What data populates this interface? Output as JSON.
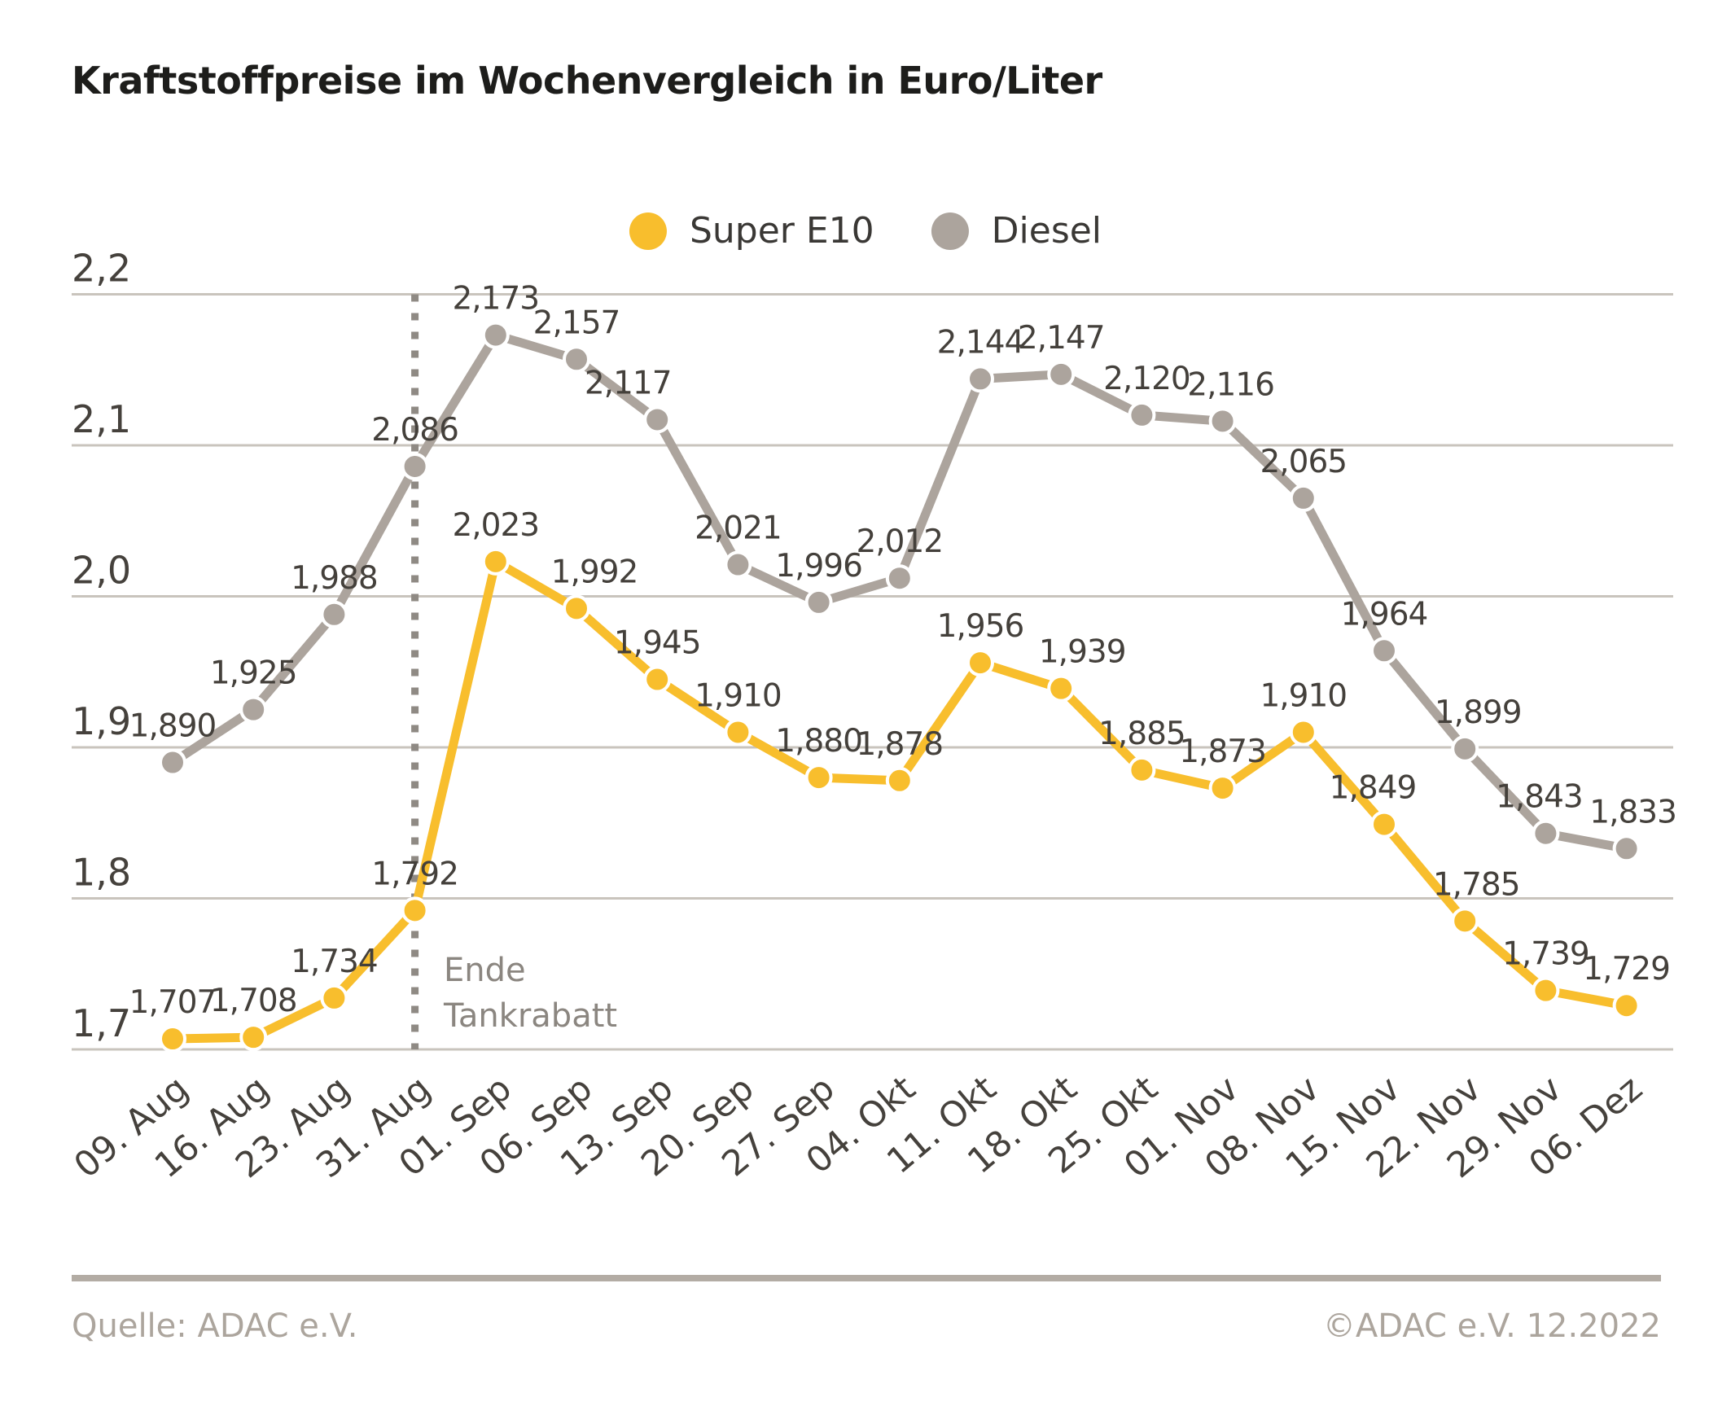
{
  "title": "Kraftstoffpreise im Wochenvergleich in Euro/Liter",
  "legend": {
    "items": [
      {
        "label": "Super E10",
        "color": "#F8BE2D"
      },
      {
        "label": "Diesel",
        "color": "#ACA49D"
      }
    ]
  },
  "annotation": {
    "line1": "Ende",
    "line2": "Tankrabatt",
    "at_category": "31. Aug"
  },
  "footer": {
    "source": "Quelle: ADAC e.V.",
    "copyright": "©ADAC e.V.  12.2022"
  },
  "colors": {
    "super_e10": "#F8BE2D",
    "diesel": "#ACA49D",
    "grid": "#C9C4BD",
    "axis_text": "#45413c",
    "value_text": "#44403b",
    "divider": "#8f8a84",
    "annotation_text": "#8b8680",
    "footer_text": "#aca59d",
    "title_text": "#1d1d1b"
  },
  "chart_data": {
    "type": "line",
    "title": "Kraftstoffpreise im Wochenvergleich in Euro/Liter",
    "xlabel": "",
    "ylabel": "Euro/Liter",
    "grid": "horizontal-only",
    "legend_position": "top-center",
    "ylim": [
      1.7,
      2.2
    ],
    "yticks": [
      {
        "value": 2.2,
        "label": "2,2"
      },
      {
        "value": 2.1,
        "label": "2,1"
      },
      {
        "value": 2.0,
        "label": "2,0"
      },
      {
        "value": 1.9,
        "label": "1,9"
      },
      {
        "value": 1.8,
        "label": "1,8"
      },
      {
        "value": 1.7,
        "label": "1,7"
      }
    ],
    "categories": [
      "09. Aug",
      "16. Aug",
      "23. Aug",
      "31. Aug",
      "01. Sep",
      "06. Sep",
      "13. Sep",
      "20. Sep",
      "27. Sep",
      "04. Okt",
      "11. Okt",
      "18. Okt",
      "25. Okt",
      "01. Nov",
      "08. Nov",
      "15. Nov",
      "22. Nov",
      "29. Nov",
      "06. Dez"
    ],
    "series": [
      {
        "name": "Super E10",
        "color": "#F8BE2D",
        "values": [
          1.707,
          1.708,
          1.734,
          1.792,
          2.023,
          1.992,
          1.945,
          1.91,
          1.88,
          1.878,
          1.956,
          1.939,
          1.885,
          1.873,
          1.91,
          1.849,
          1.785,
          1.739,
          1.729
        ],
        "labels": [
          "1,707",
          "1,708",
          "1,734",
          "1,792",
          "2,023",
          "1,992",
          "1,945",
          "1,910",
          "1,880",
          "1,878",
          "1,956",
          "1,939",
          "1,885",
          "1,873",
          "1,910",
          "1,849",
          "1,785",
          "1,739",
          "1,729"
        ]
      },
      {
        "name": "Diesel",
        "color": "#ACA49D",
        "values": [
          1.89,
          1.925,
          1.988,
          2.086,
          2.173,
          2.157,
          2.117,
          2.021,
          1.996,
          2.012,
          2.144,
          2.147,
          2.12,
          2.116,
          2.065,
          1.964,
          1.899,
          1.843,
          1.833
        ],
        "labels": [
          "1,890",
          "1,925",
          "1,988",
          "2,086",
          "2,173",
          "2,157",
          "2,117",
          "2,021",
          "1,996",
          "2,012",
          "2,144",
          "2,147",
          "2,120",
          "2,116",
          "2,065",
          "1,964",
          "1,899",
          "1,843",
          "1,833"
        ]
      }
    ],
    "annotation": {
      "text": "Ende Tankrabatt",
      "at_category": "31. Aug"
    }
  }
}
